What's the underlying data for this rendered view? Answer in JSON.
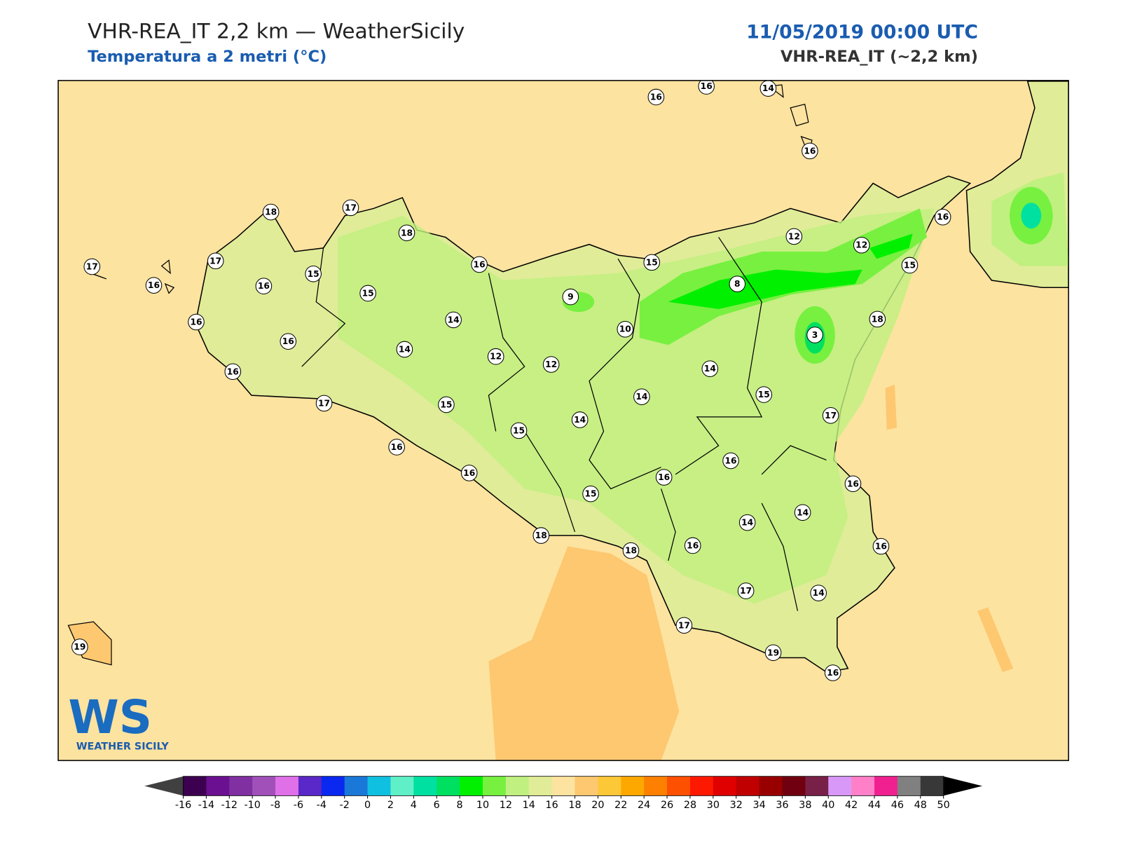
{
  "header": {
    "title": "VHR-REA_IT 2,2 km — WeatherSicily",
    "subtitle": "Temperatura a 2 metri (°C)",
    "date": "11/05/2019 00:00 UTC",
    "model": "VHR-REA_IT (~2,2 km)"
  },
  "map": {
    "stations": [
      16,
      16,
      14,
      16,
      18,
      17,
      18,
      17,
      17,
      16,
      15,
      16,
      15,
      16,
      15,
      12,
      12,
      16,
      15,
      8,
      9,
      14,
      16,
      16,
      10,
      3,
      18,
      14,
      12,
      12,
      14,
      16,
      14,
      15,
      17,
      15,
      14,
      17,
      15,
      16,
      16,
      16,
      16,
      16,
      15,
      14,
      14,
      18,
      16,
      18,
      16,
      17,
      14,
      17,
      19,
      19,
      16
    ]
  },
  "colorbar": {
    "ticks": [
      -16,
      -14,
      -12,
      -10,
      -8,
      -6,
      -4,
      -2,
      0,
      2,
      4,
      6,
      8,
      10,
      12,
      14,
      16,
      18,
      20,
      22,
      24,
      26,
      28,
      30,
      32,
      34,
      36,
      38,
      40,
      42,
      44,
      46,
      48,
      50
    ],
    "colors": [
      "#3d0050",
      "#6a1090",
      "#8030a0",
      "#a050b8",
      "#e070e8",
      "#5a28c8",
      "#0a28f0",
      "#1a78d8",
      "#10c0e0",
      "#60f0c8",
      "#00e0a0",
      "#00e060",
      "#00f000",
      "#78f040",
      "#c0f080",
      "#e0ec98",
      "#fde3a0",
      "#fdc870",
      "#fdc838",
      "#fda800",
      "#fd8000",
      "#fd5000",
      "#fd1800",
      "#e00000",
      "#c00000",
      "#980000",
      "#700010",
      "#782048",
      "#d898f8",
      "#ff80c8",
      "#f02090",
      "#808080",
      "#383838"
    ],
    "under_color": "#404040",
    "over_color": "#000000"
  },
  "logo": {
    "mark": "WS",
    "text": "WEATHER SICILY"
  }
}
